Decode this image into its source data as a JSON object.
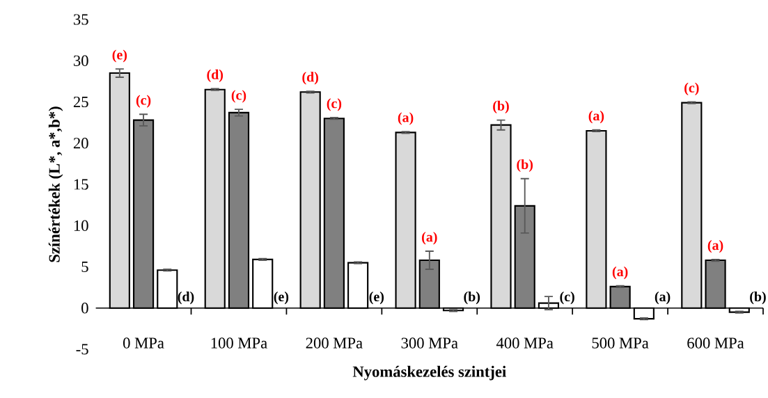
{
  "chart_data": {
    "type": "bar",
    "xlabel": "Nyomáskezelés szintjei",
    "ylabel": "Színértékek (L*, a*,b*)",
    "categories": [
      "0 MPa",
      "100 MPa",
      "200 MPa",
      "300 MPa",
      "400 MPa",
      "500 MPa",
      "600 MPa"
    ],
    "ylim": [
      -5,
      35
    ],
    "yticks": [
      -5,
      0,
      5,
      10,
      15,
      20,
      25,
      30,
      35
    ],
    "series": [
      {
        "color": "#d9d9d9",
        "values": [
          28.5,
          26.5,
          26.2,
          21.3,
          22.2,
          21.5,
          24.9
        ],
        "errors": [
          0.5,
          0.1,
          0.1,
          0.1,
          0.6,
          0.1,
          0.1
        ],
        "value_labels": [
          "(e)",
          "(d)",
          "(d)",
          "(a)",
          "(b)",
          "(a)",
          "(c)"
        ]
      },
      {
        "color": "#808080",
        "values": [
          22.8,
          23.7,
          23.0,
          5.8,
          12.4,
          2.6,
          5.8
        ],
        "errors": [
          0.7,
          0.4,
          0.1,
          1.1,
          3.3,
          0.1,
          0.1
        ],
        "value_labels": [
          "(c)",
          "(c)",
          "(c)",
          "(a)",
          "(b)",
          "(a)",
          "(a)"
        ]
      },
      {
        "color": "#ffffff",
        "values": [
          4.6,
          5.9,
          5.5,
          -0.3,
          0.6,
          -1.3,
          -0.5
        ],
        "errors": [
          0.1,
          0.1,
          0.1,
          0.1,
          0.8,
          0.1,
          0.1
        ],
        "value_labels": [
          "(d)",
          "(e)",
          "(e)",
          "(b)",
          "(c)",
          "(a)",
          "(b)"
        ]
      }
    ]
  }
}
